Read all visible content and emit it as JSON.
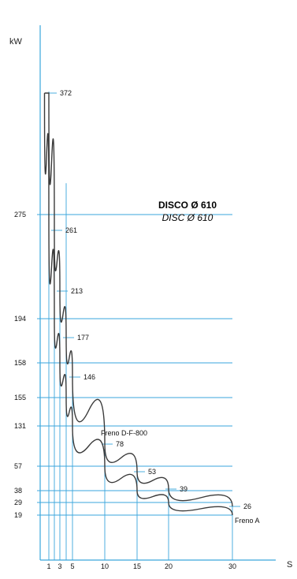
{
  "chart_data": {
    "type": "line",
    "title": "DISCO Ø 610",
    "subtitle": "DISC Ø 610",
    "ylabel": "kW",
    "xlabel": "S",
    "x_ticks": [
      1,
      3,
      5,
      10,
      15,
      20,
      30
    ],
    "x_tick_labels": [
      "1",
      "3",
      "5",
      "10",
      "15",
      "20",
      "30"
    ],
    "y_ticks": [
      19,
      29,
      38,
      57,
      131,
      155,
      158,
      194,
      275
    ],
    "y_tick_labels": [
      "19",
      "29",
      "38",
      "57",
      "131",
      "155",
      "158",
      "194",
      "275"
    ],
    "series": [
      {
        "name": "Freno D-F-800",
        "color": "#3a3a3a",
        "points": [
          {
            "x": 0.5,
            "y": 372
          },
          {
            "x": 1,
            "y": 372
          },
          {
            "x": 2,
            "y": 261
          },
          {
            "x": 3,
            "y": 213
          },
          {
            "x": 4,
            "y": 177
          },
          {
            "x": 5,
            "y": 146
          },
          {
            "x": 10,
            "y": 78
          },
          {
            "x": 15,
            "y": 53
          },
          {
            "x": 20,
            "y": 39
          },
          {
            "x": 30,
            "y": 26
          }
        ]
      },
      {
        "name": "Freno A",
        "color": "#3a3a3a",
        "points": [
          {
            "x": 0.5,
            "y": 372
          },
          {
            "x": 1,
            "y": 275
          },
          {
            "x": 2,
            "y": 194
          },
          {
            "x": 3,
            "y": 158
          },
          {
            "x": 4,
            "y": 155
          },
          {
            "x": 5,
            "y": 131
          },
          {
            "x": 10,
            "y": 57
          },
          {
            "x": 15,
            "y": 38
          },
          {
            "x": 20,
            "y": 29
          },
          {
            "x": 30,
            "y": 19
          }
        ]
      }
    ],
    "data_labels": [
      {
        "x": 1,
        "y": 372,
        "text": "372"
      },
      {
        "x": 2,
        "y": 261,
        "text": "261"
      },
      {
        "x": 3,
        "y": 213,
        "text": "213"
      },
      {
        "x": 4,
        "y": 177,
        "text": "177"
      },
      {
        "x": 5,
        "y": 146,
        "text": "146"
      },
      {
        "x": 10,
        "y": 78,
        "text": "78"
      },
      {
        "x": 15,
        "y": 53,
        "text": "53"
      },
      {
        "x": 20,
        "y": 39,
        "text": "39"
      },
      {
        "x": 30,
        "y": 26,
        "text": "26"
      }
    ],
    "series_labels": [
      {
        "series": 0,
        "text": "Freno D-F-800"
      },
      {
        "series": 1,
        "text": "Freno A"
      }
    ],
    "colors": {
      "grid": "#3aa6dc",
      "axis": "#3aa6dc",
      "curve": "#3a3a3a"
    },
    "grid": true,
    "legend": "none"
  }
}
